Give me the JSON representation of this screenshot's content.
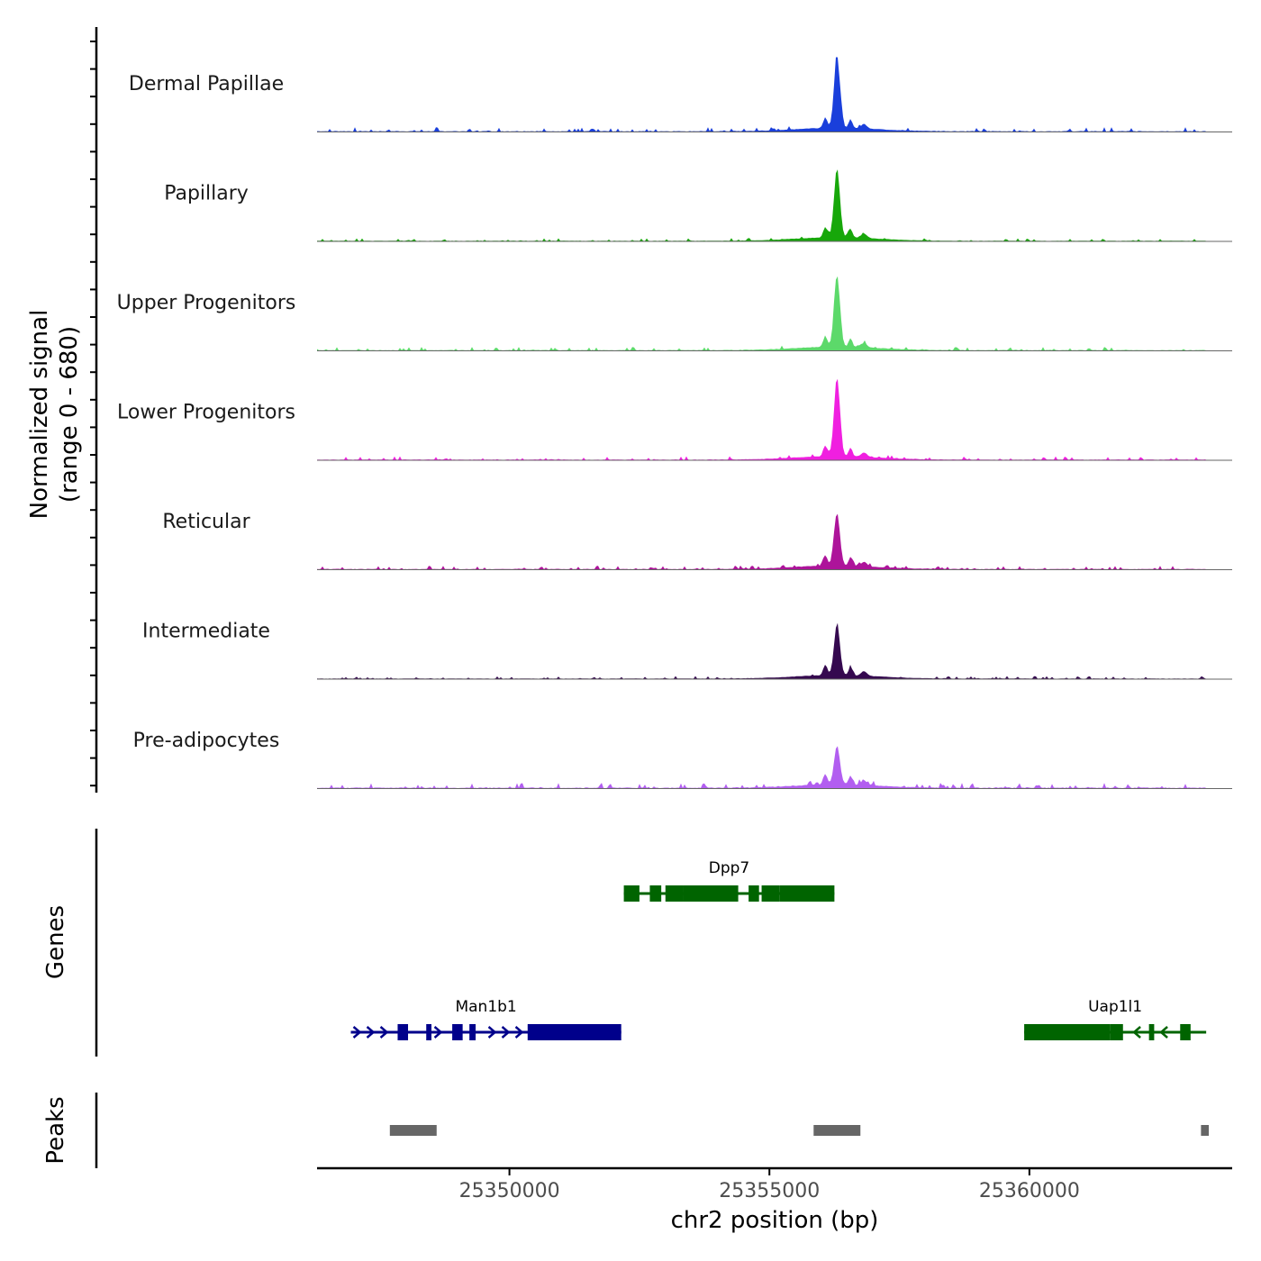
{
  "chart_data": {
    "type": "area",
    "chromosome": "chr2",
    "xlim": [
      25346300,
      25363900
    ],
    "xlabel": "chr2 position (bp)",
    "ylabel_line1": "Normalized signal",
    "ylabel_line2": "(range 0 - 680)",
    "y_range": [
      0,
      680
    ],
    "x_ticks": [
      {
        "value": 25350000,
        "label": "25350000"
      },
      {
        "value": 25355000,
        "label": "25355000"
      },
      {
        "value": 25360000,
        "label": "25360000"
      }
    ],
    "peak_summit_position": 25356300,
    "tracks": [
      {
        "name": "Dermal Papillae",
        "color": "#1a3fdb",
        "peak": 0.82,
        "noise": 0.05
      },
      {
        "name": "Papillary",
        "color": "#17a70a",
        "peak": 0.78,
        "noise": 0.03
      },
      {
        "name": "Upper Progenitors",
        "color": "#5cd96a",
        "peak": 0.82,
        "noise": 0.04
      },
      {
        "name": "Lower Progenitors",
        "color": "#f01fe0",
        "peak": 0.9,
        "noise": 0.04
      },
      {
        "name": "Reticular",
        "color": "#ad149a",
        "peak": 0.6,
        "noise": 0.04
      },
      {
        "name": "Intermediate",
        "color": "#35094f",
        "peak": 0.58,
        "noise": 0.03
      },
      {
        "name": "Pre-adipocytes",
        "color": "#b25ef0",
        "peak": 0.44,
        "noise": 0.06
      }
    ],
    "genes_label": "Genes",
    "genes": [
      {
        "name": "Dpp7",
        "strand": "-",
        "color": "#006400",
        "row": 0,
        "start": 25352200,
        "end": 25356250,
        "exons": [
          [
            25352200,
            25352500
          ],
          [
            25352700,
            25352920
          ],
          [
            25353000,
            25353350
          ],
          [
            25353350,
            25354400
          ],
          [
            25354600,
            25354800
          ],
          [
            25354850,
            25355200
          ],
          [
            25355200,
            25356250
          ]
        ]
      },
      {
        "name": "Man1b1",
        "strand": "+",
        "color": "#00008b",
        "row": 1,
        "start": 25346950,
        "end": 25352150,
        "exons": [
          [
            25347850,
            25348050
          ],
          [
            25348400,
            25348500
          ],
          [
            25348900,
            25349100
          ],
          [
            25349230,
            25349350
          ],
          [
            25350350,
            25352150
          ]
        ]
      },
      {
        "name": "Uap1l1",
        "strand": "-",
        "color": "#006400",
        "row": 1,
        "start": 25359900,
        "end": 25363400,
        "exons": [
          [
            25359900,
            25361550
          ],
          [
            25361550,
            25361800
          ],
          [
            25362300,
            25362400
          ],
          [
            25362900,
            25363100
          ]
        ]
      }
    ],
    "peaks_label": "Peaks",
    "peaks": [
      {
        "start": 25347700,
        "end": 25348600
      },
      {
        "start": 25355850,
        "end": 25356750
      },
      {
        "start": 25363300,
        "end": 25363450
      }
    ]
  }
}
